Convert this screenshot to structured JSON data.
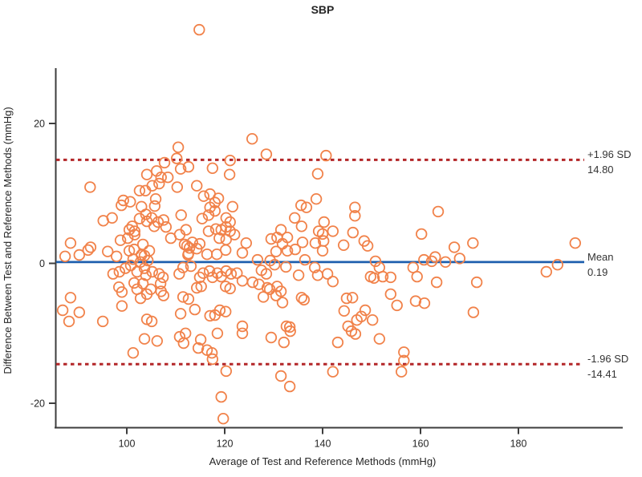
{
  "title": "SBP",
  "x_axis": {
    "label": "Average of Test and Reference Methods (mmHg)"
  },
  "y_axis": {
    "label": "Difference Between Test and Reference Methods (mmHg)"
  },
  "reference_lines": {
    "upper": {
      "label": "+1.96 SD",
      "value": "14.80",
      "y": 14.8,
      "style": "dashed",
      "color": "#b32628"
    },
    "mean": {
      "label": "Mean",
      "value": "0.19",
      "y": 0.19,
      "style": "solid",
      "color": "#1e5fae"
    },
    "lower": {
      "label": "-1.96 SD",
      "value": "-14.41",
      "y": -14.41,
      "style": "dashed",
      "color": "#b32628"
    }
  },
  "colors": {
    "marker": "#f1824a",
    "mean_line": "#1e5fae",
    "loa_line": "#b32628",
    "axis": "#3d3d3d",
    "text": "#262626"
  },
  "chart_data": {
    "type": "scatter",
    "title": "SBP",
    "xlabel": "Average of Test and Reference Methods (mmHg)",
    "ylabel": "Difference Between Test and Reference Methods (mmHg)",
    "xlim": [
      85.4,
      201
    ],
    "ylim": [
      -23.5,
      37
    ],
    "x_ticks": [
      100,
      120,
      140,
      160,
      180
    ],
    "y_ticks": [
      20,
      0,
      -20
    ],
    "grid": false,
    "legend": "none",
    "mean": 0.19,
    "upper_loa": 14.8,
    "lower_loa": -14.41,
    "marker_style": "open-circle",
    "points": [
      [
        114.8,
        33.4
      ],
      [
        92.5,
        10.9
      ],
      [
        110.5,
        16.6
      ],
      [
        110.2,
        15.0
      ],
      [
        107.7,
        14.4
      ],
      [
        111.0,
        13.5
      ],
      [
        112.6,
        13.8
      ],
      [
        117.5,
        13.6
      ],
      [
        121.1,
        14.7
      ],
      [
        121.0,
        12.7
      ],
      [
        104.1,
        12.7
      ],
      [
        106.1,
        13.2
      ],
      [
        107.0,
        12.3
      ],
      [
        108.4,
        12.3
      ],
      [
        105.2,
        11.1
      ],
      [
        103.8,
        10.4
      ],
      [
        102.6,
        10.4
      ],
      [
        106.6,
        11.4
      ],
      [
        110.3,
        10.9
      ],
      [
        114.3,
        11.1
      ],
      [
        125.6,
        17.8
      ],
      [
        128.5,
        15.6
      ],
      [
        140.7,
        15.4
      ],
      [
        139.0,
        12.8
      ],
      [
        99.3,
        9.0
      ],
      [
        100.7,
        8.8
      ],
      [
        98.9,
        8.3
      ],
      [
        105.9,
        9.2
      ],
      [
        115.7,
        9.6
      ],
      [
        117.0,
        9.9
      ],
      [
        118.7,
        9.3
      ],
      [
        118.0,
        8.7
      ],
      [
        117.0,
        8.0
      ],
      [
        118.0,
        7.5
      ],
      [
        116.7,
        6.9
      ],
      [
        103.9,
        7.0
      ],
      [
        103.0,
        8.1
      ],
      [
        105.7,
        8.2
      ],
      [
        121.6,
        8.1
      ],
      [
        111.1,
        6.9
      ],
      [
        115.4,
        6.4
      ],
      [
        95.2,
        6.1
      ],
      [
        97.0,
        6.5
      ],
      [
        104.1,
        6.0
      ],
      [
        105.1,
        6.5
      ],
      [
        102.6,
        6.4
      ],
      [
        106.4,
        5.9
      ],
      [
        107.5,
        6.2
      ],
      [
        108.0,
        5.2
      ],
      [
        105.6,
        5.3
      ],
      [
        101.1,
        5.3
      ],
      [
        101.6,
        4.6
      ],
      [
        101.6,
        4.1
      ],
      [
        100.5,
        4.8
      ],
      [
        109.0,
        3.6
      ],
      [
        110.8,
        4.1
      ],
      [
        112.1,
        4.8
      ],
      [
        111.8,
        2.7
      ],
      [
        113.4,
        3.0
      ],
      [
        112.8,
        2.2
      ],
      [
        114.3,
        2.1
      ],
      [
        114.9,
        2.8
      ],
      [
        116.7,
        4.6
      ],
      [
        118.2,
        4.9
      ],
      [
        119.3,
        4.8
      ],
      [
        118.9,
        3.6
      ],
      [
        120.3,
        3.4
      ],
      [
        120.3,
        6.5
      ],
      [
        121.1,
        5.9
      ],
      [
        120.3,
        5.2
      ],
      [
        121.1,
        4.6
      ],
      [
        122.0,
        4.1
      ],
      [
        88.5,
        2.9
      ],
      [
        92.6,
        2.3
      ],
      [
        100.2,
        3.6
      ],
      [
        98.7,
        3.3
      ],
      [
        103.3,
        2.7
      ],
      [
        112.3,
        2.5
      ],
      [
        96.1,
        1.7
      ],
      [
        97.9,
        1.0
      ],
      [
        101.5,
        2.0
      ],
      [
        103.0,
        1.2
      ],
      [
        123.6,
        1.5
      ],
      [
        120.2,
        1.9
      ],
      [
        118.4,
        1.3
      ],
      [
        112.5,
        1.2
      ],
      [
        103.6,
        1.1
      ],
      [
        104.6,
        1.8
      ],
      [
        104.3,
        0.4
      ],
      [
        102.8,
        0.2
      ],
      [
        87.4,
        1.0
      ],
      [
        90.3,
        1.2
      ],
      [
        92.1,
        1.9
      ],
      [
        100.5,
        1.8
      ],
      [
        112.6,
        1.4
      ],
      [
        116.4,
        1.3
      ],
      [
        101.3,
        0.6
      ],
      [
        97.2,
        -1.5
      ],
      [
        98.5,
        -1.2
      ],
      [
        99.7,
        -0.7
      ],
      [
        100.8,
        -0.3
      ],
      [
        102.1,
        -1.2
      ],
      [
        103.6,
        -0.7
      ],
      [
        103.9,
        -1.7
      ],
      [
        105.2,
        -1.2
      ],
      [
        106.6,
        -1.5
      ],
      [
        107.4,
        -2.0
      ],
      [
        110.7,
        -1.5
      ],
      [
        111.5,
        -0.6
      ],
      [
        113.1,
        -0.4
      ],
      [
        114.9,
        -2.0
      ],
      [
        115.6,
        -1.4
      ],
      [
        116.9,
        -1.1
      ],
      [
        117.5,
        -2.0
      ],
      [
        118.5,
        -1.4
      ],
      [
        119.3,
        -1.9
      ],
      [
        120.3,
        -1.1
      ],
      [
        121.3,
        -1.5
      ],
      [
        120.2,
        -3.3
      ],
      [
        121.1,
        -3.6
      ],
      [
        122.5,
        -1.4
      ],
      [
        123.6,
        -2.5
      ],
      [
        98.4,
        -3.4
      ],
      [
        99.0,
        -4.1
      ],
      [
        101.5,
        -2.8
      ],
      [
        102.1,
        -3.7
      ],
      [
        103.3,
        -2.9
      ],
      [
        104.1,
        -4.4
      ],
      [
        104.9,
        -3.7
      ],
      [
        106.9,
        -2.9
      ],
      [
        107.0,
        -4.0
      ],
      [
        107.5,
        -4.6
      ],
      [
        114.3,
        -3.5
      ],
      [
        115.2,
        -3.3
      ],
      [
        111.5,
        -4.8
      ],
      [
        112.6,
        -5.1
      ],
      [
        88.5,
        -4.9
      ],
      [
        102.8,
        -5.0
      ],
      [
        99.0,
        -6.1
      ],
      [
        86.9,
        -6.7
      ],
      [
        90.3,
        -7.0
      ],
      [
        111.0,
        -7.2
      ],
      [
        113.9,
        -6.6
      ],
      [
        118.0,
        -7.4
      ],
      [
        119.0,
        -6.7
      ],
      [
        120.2,
        -6.9
      ],
      [
        117.0,
        -7.5
      ],
      [
        88.2,
        -8.3
      ],
      [
        95.1,
        -8.3
      ],
      [
        104.1,
        -8.0
      ],
      [
        105.1,
        -8.3
      ],
      [
        123.6,
        -9.0
      ],
      [
        106.2,
        -11.1
      ],
      [
        110.8,
        -10.5
      ],
      [
        111.6,
        -11.4
      ],
      [
        112.0,
        -10.0
      ],
      [
        118.5,
        -10.0
      ],
      [
        123.6,
        -10.0
      ],
      [
        115.1,
        -10.9
      ],
      [
        103.6,
        -10.8
      ],
      [
        101.3,
        -12.8
      ],
      [
        114.6,
        -12.1
      ],
      [
        116.4,
        -12.4
      ],
      [
        117.4,
        -12.8
      ],
      [
        117.5,
        -13.7
      ],
      [
        120.3,
        -15.4
      ],
      [
        119.3,
        -19.1
      ],
      [
        119.7,
        -22.2
      ],
      [
        138.7,
        9.2
      ],
      [
        135.6,
        8.3
      ],
      [
        136.7,
        8.0
      ],
      [
        134.3,
        6.5
      ],
      [
        135.7,
        5.3
      ],
      [
        146.6,
        8.0
      ],
      [
        146.6,
        6.8
      ],
      [
        140.3,
        5.9
      ],
      [
        131.5,
        4.8
      ],
      [
        130.7,
        3.7
      ],
      [
        132.8,
        3.7
      ],
      [
        139.2,
        4.6
      ],
      [
        140.0,
        4.2
      ],
      [
        142.1,
        4.6
      ],
      [
        146.2,
        4.4
      ],
      [
        160.2,
        4.2
      ],
      [
        163.6,
        7.4
      ],
      [
        129.5,
        3.5
      ],
      [
        131.8,
        2.8
      ],
      [
        135.9,
        3.0
      ],
      [
        138.5,
        2.9
      ],
      [
        140.2,
        3.2
      ],
      [
        144.3,
        2.6
      ],
      [
        149.2,
        2.5
      ],
      [
        124.4,
        2.9
      ],
      [
        148.5,
        3.2
      ],
      [
        130.5,
        1.7
      ],
      [
        132.8,
        1.8
      ],
      [
        134.4,
        2.0
      ],
      [
        140.0,
        1.8
      ],
      [
        126.7,
        0.5
      ],
      [
        129.3,
        0.4
      ],
      [
        130.2,
        -0.2
      ],
      [
        132.5,
        -0.5
      ],
      [
        136.4,
        0.5
      ],
      [
        138.4,
        -0.6
      ],
      [
        141.0,
        -1.5
      ],
      [
        142.1,
        -2.6
      ],
      [
        150.8,
        0.3
      ],
      [
        151.6,
        -0.6
      ],
      [
        160.7,
        0.5
      ],
      [
        162.3,
        0.3
      ],
      [
        163.0,
        0.9
      ],
      [
        127.5,
        -1.0
      ],
      [
        128.5,
        -1.5
      ],
      [
        125.7,
        -2.7
      ],
      [
        127.0,
        -3.0
      ],
      [
        128.7,
        -3.5
      ],
      [
        135.1,
        -1.7
      ],
      [
        139.0,
        -1.7
      ],
      [
        149.8,
        -1.9
      ],
      [
        150.5,
        -2.1
      ],
      [
        152.3,
        -1.9
      ],
      [
        153.9,
        -2.0
      ],
      [
        158.5,
        -0.6
      ],
      [
        159.3,
        -1.9
      ],
      [
        130.7,
        -3.3
      ],
      [
        131.5,
        -4.0
      ],
      [
        130.5,
        -4.6
      ],
      [
        131.8,
        -5.6
      ],
      [
        127.9,
        -4.8
      ],
      [
        129.2,
        -3.7
      ],
      [
        135.7,
        -4.9
      ],
      [
        136.2,
        -5.2
      ],
      [
        144.9,
        -5.0
      ],
      [
        146.1,
        -4.9
      ],
      [
        153.9,
        -4.4
      ],
      [
        155.2,
        -6.0
      ],
      [
        159.0,
        -5.4
      ],
      [
        160.8,
        -5.7
      ],
      [
        144.4,
        -6.8
      ],
      [
        148.7,
        -6.7
      ],
      [
        147.9,
        -7.6
      ],
      [
        147.0,
        -8.1
      ],
      [
        150.2,
        -8.1
      ],
      [
        145.2,
        -9.0
      ],
      [
        145.9,
        -9.7
      ],
      [
        132.6,
        -9.0
      ],
      [
        133.3,
        -9.1
      ],
      [
        133.4,
        -9.7
      ],
      [
        129.5,
        -10.6
      ],
      [
        143.1,
        -11.3
      ],
      [
        146.7,
        -10.1
      ],
      [
        151.6,
        -10.8
      ],
      [
        132.1,
        -11.3
      ],
      [
        131.5,
        -16.1
      ],
      [
        133.3,
        -17.6
      ],
      [
        142.1,
        -15.5
      ],
      [
        156.6,
        -12.7
      ],
      [
        156.6,
        -13.9
      ],
      [
        156.1,
        -15.5
      ],
      [
        166.9,
        2.3
      ],
      [
        170.7,
        2.9
      ],
      [
        191.6,
        2.9
      ],
      [
        165.1,
        0.2
      ],
      [
        168.0,
        0.7
      ],
      [
        163.3,
        -2.7
      ],
      [
        171.5,
        -2.7
      ],
      [
        170.8,
        -7.0
      ],
      [
        185.7,
        -1.2
      ],
      [
        188.0,
        -0.2
      ]
    ]
  }
}
